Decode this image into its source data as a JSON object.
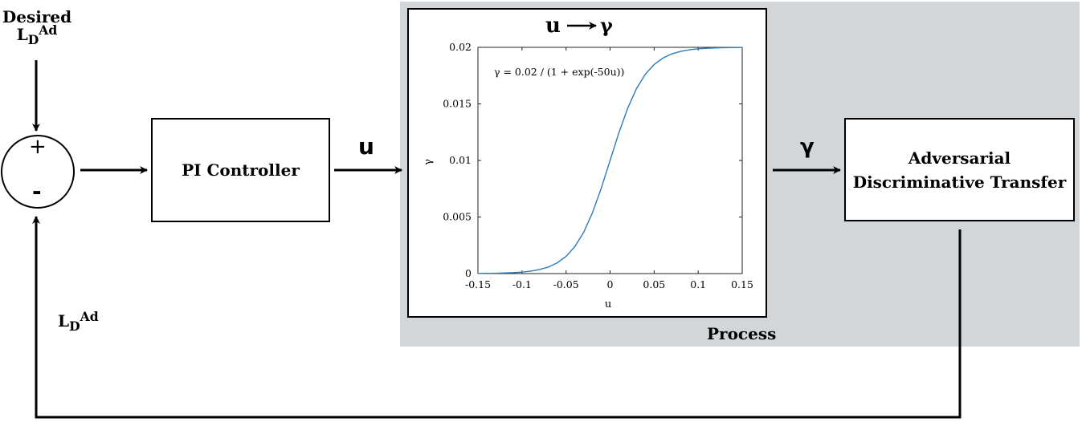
{
  "process_label": "Process",
  "desired_label": {
    "line1": "Desired",
    "base": "L",
    "sub": "D",
    "sup": "Ad"
  },
  "feedback_label": {
    "base": "L",
    "sub": "D",
    "sup": "Ad"
  },
  "sum_plus": "+",
  "sum_minus": "-",
  "pi_controller": "PI Controller",
  "u_label": "u",
  "gamma_label": "γ",
  "adt": {
    "line1": "Adversarial",
    "line2": "Discriminative Transfer"
  },
  "chart_title": {
    "left": "u",
    "right": "γ"
  },
  "chart_data": {
    "type": "line",
    "annotation": "γ = 0.02 / (1 + exp(-50u))",
    "xlabel": "u",
    "ylabel": "γ",
    "xlim": [
      -0.15,
      0.15
    ],
    "ylim": [
      0,
      0.02
    ],
    "xticks": [
      "-0.15",
      "-0.1",
      "-0.05",
      "0",
      "0.05",
      "0.1",
      "0.15"
    ],
    "yticks": [
      "0",
      "0.005",
      "0.01",
      "0.015",
      "0.02"
    ],
    "grid": false,
    "series_color": "#2b7bba",
    "series": [
      {
        "x": [
          -0.15,
          -0.13,
          -0.11,
          -0.1,
          -0.09,
          -0.08,
          -0.07,
          -0.06,
          -0.05,
          -0.04,
          -0.03,
          -0.02,
          -0.01,
          0,
          0.01,
          0.02,
          0.03,
          0.04,
          0.05,
          0.06,
          0.07,
          0.08,
          0.09,
          0.1,
          0.11,
          0.13,
          0.15
        ],
        "y": [
          1e-05,
          3e-05,
          8e-05,
          0.00013,
          0.00022,
          0.00036,
          0.00058,
          0.00095,
          0.00152,
          0.00238,
          0.00364,
          0.00538,
          0.00755,
          0.01,
          0.01245,
          0.01462,
          0.01636,
          0.01762,
          0.01848,
          0.01905,
          0.01942,
          0.01964,
          0.01978,
          0.01987,
          0.01992,
          0.01997,
          0.01999
        ]
      }
    ]
  }
}
